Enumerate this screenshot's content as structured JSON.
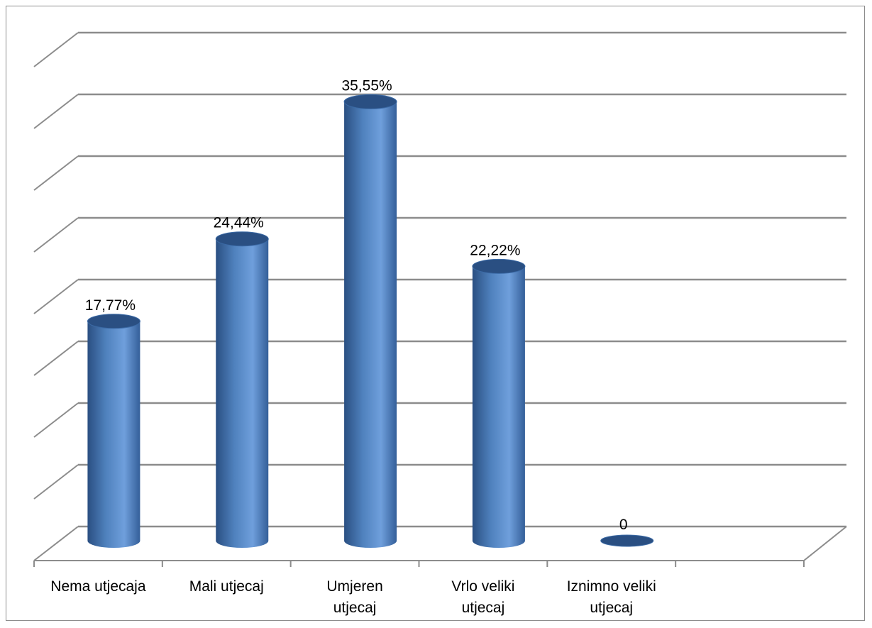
{
  "chart_data": {
    "type": "bar",
    "style": "3d-cylinder",
    "categories": [
      [
        "Nema utjecaja"
      ],
      [
        "Mali utjecaj"
      ],
      [
        "Umjeren",
        "utjecaj"
      ],
      [
        "Vrlo veliki",
        "utjecaj"
      ],
      [
        "Iznimno veliki",
        "utjecaj"
      ]
    ],
    "values": [
      17.77,
      24.44,
      35.55,
      22.22,
      0
    ],
    "data_labels": [
      "17,77%",
      "24,44%",
      "35,55%",
      "22,22%",
      "0"
    ],
    "ylim": [
      0,
      40
    ],
    "gridlines": 8,
    "grid": true,
    "legend": "none",
    "bar_color": "#4f81bd",
    "bar_dark": "#2a4f82",
    "bar_light": "#6f9fdc",
    "grid_color": "#8c8c8c"
  }
}
